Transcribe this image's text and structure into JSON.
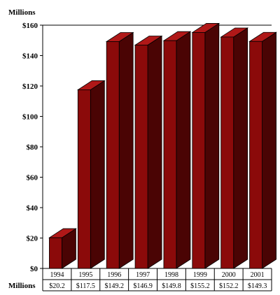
{
  "chart_data": {
    "type": "bar",
    "title": "",
    "ylabel": "Millions",
    "xlabel": "",
    "categories": [
      "1994",
      "1995",
      "1996",
      "1997",
      "1998",
      "1999",
      "2000",
      "2001"
    ],
    "values": [
      20.2,
      117.5,
      149.2,
      146.9,
      149.8,
      155.2,
      152.2,
      149.3
    ],
    "ylim": [
      0,
      160
    ],
    "yticks": [
      "$0",
      "$20",
      "$40",
      "$60",
      "$80",
      "$100",
      "$120",
      "$140",
      "$160"
    ],
    "table_row_label": "Millions",
    "table_values": [
      "$20.2",
      "$117.5",
      "$149.2",
      "$146.9",
      "$149.8",
      "$155.2",
      "$152.2",
      "$149.3"
    ],
    "bar_front_color": "#8b0a0a",
    "bar_side_color": "#4a0404",
    "bar_top_color": "#b01818",
    "grid": false,
    "legend": "none",
    "style": "3d"
  }
}
